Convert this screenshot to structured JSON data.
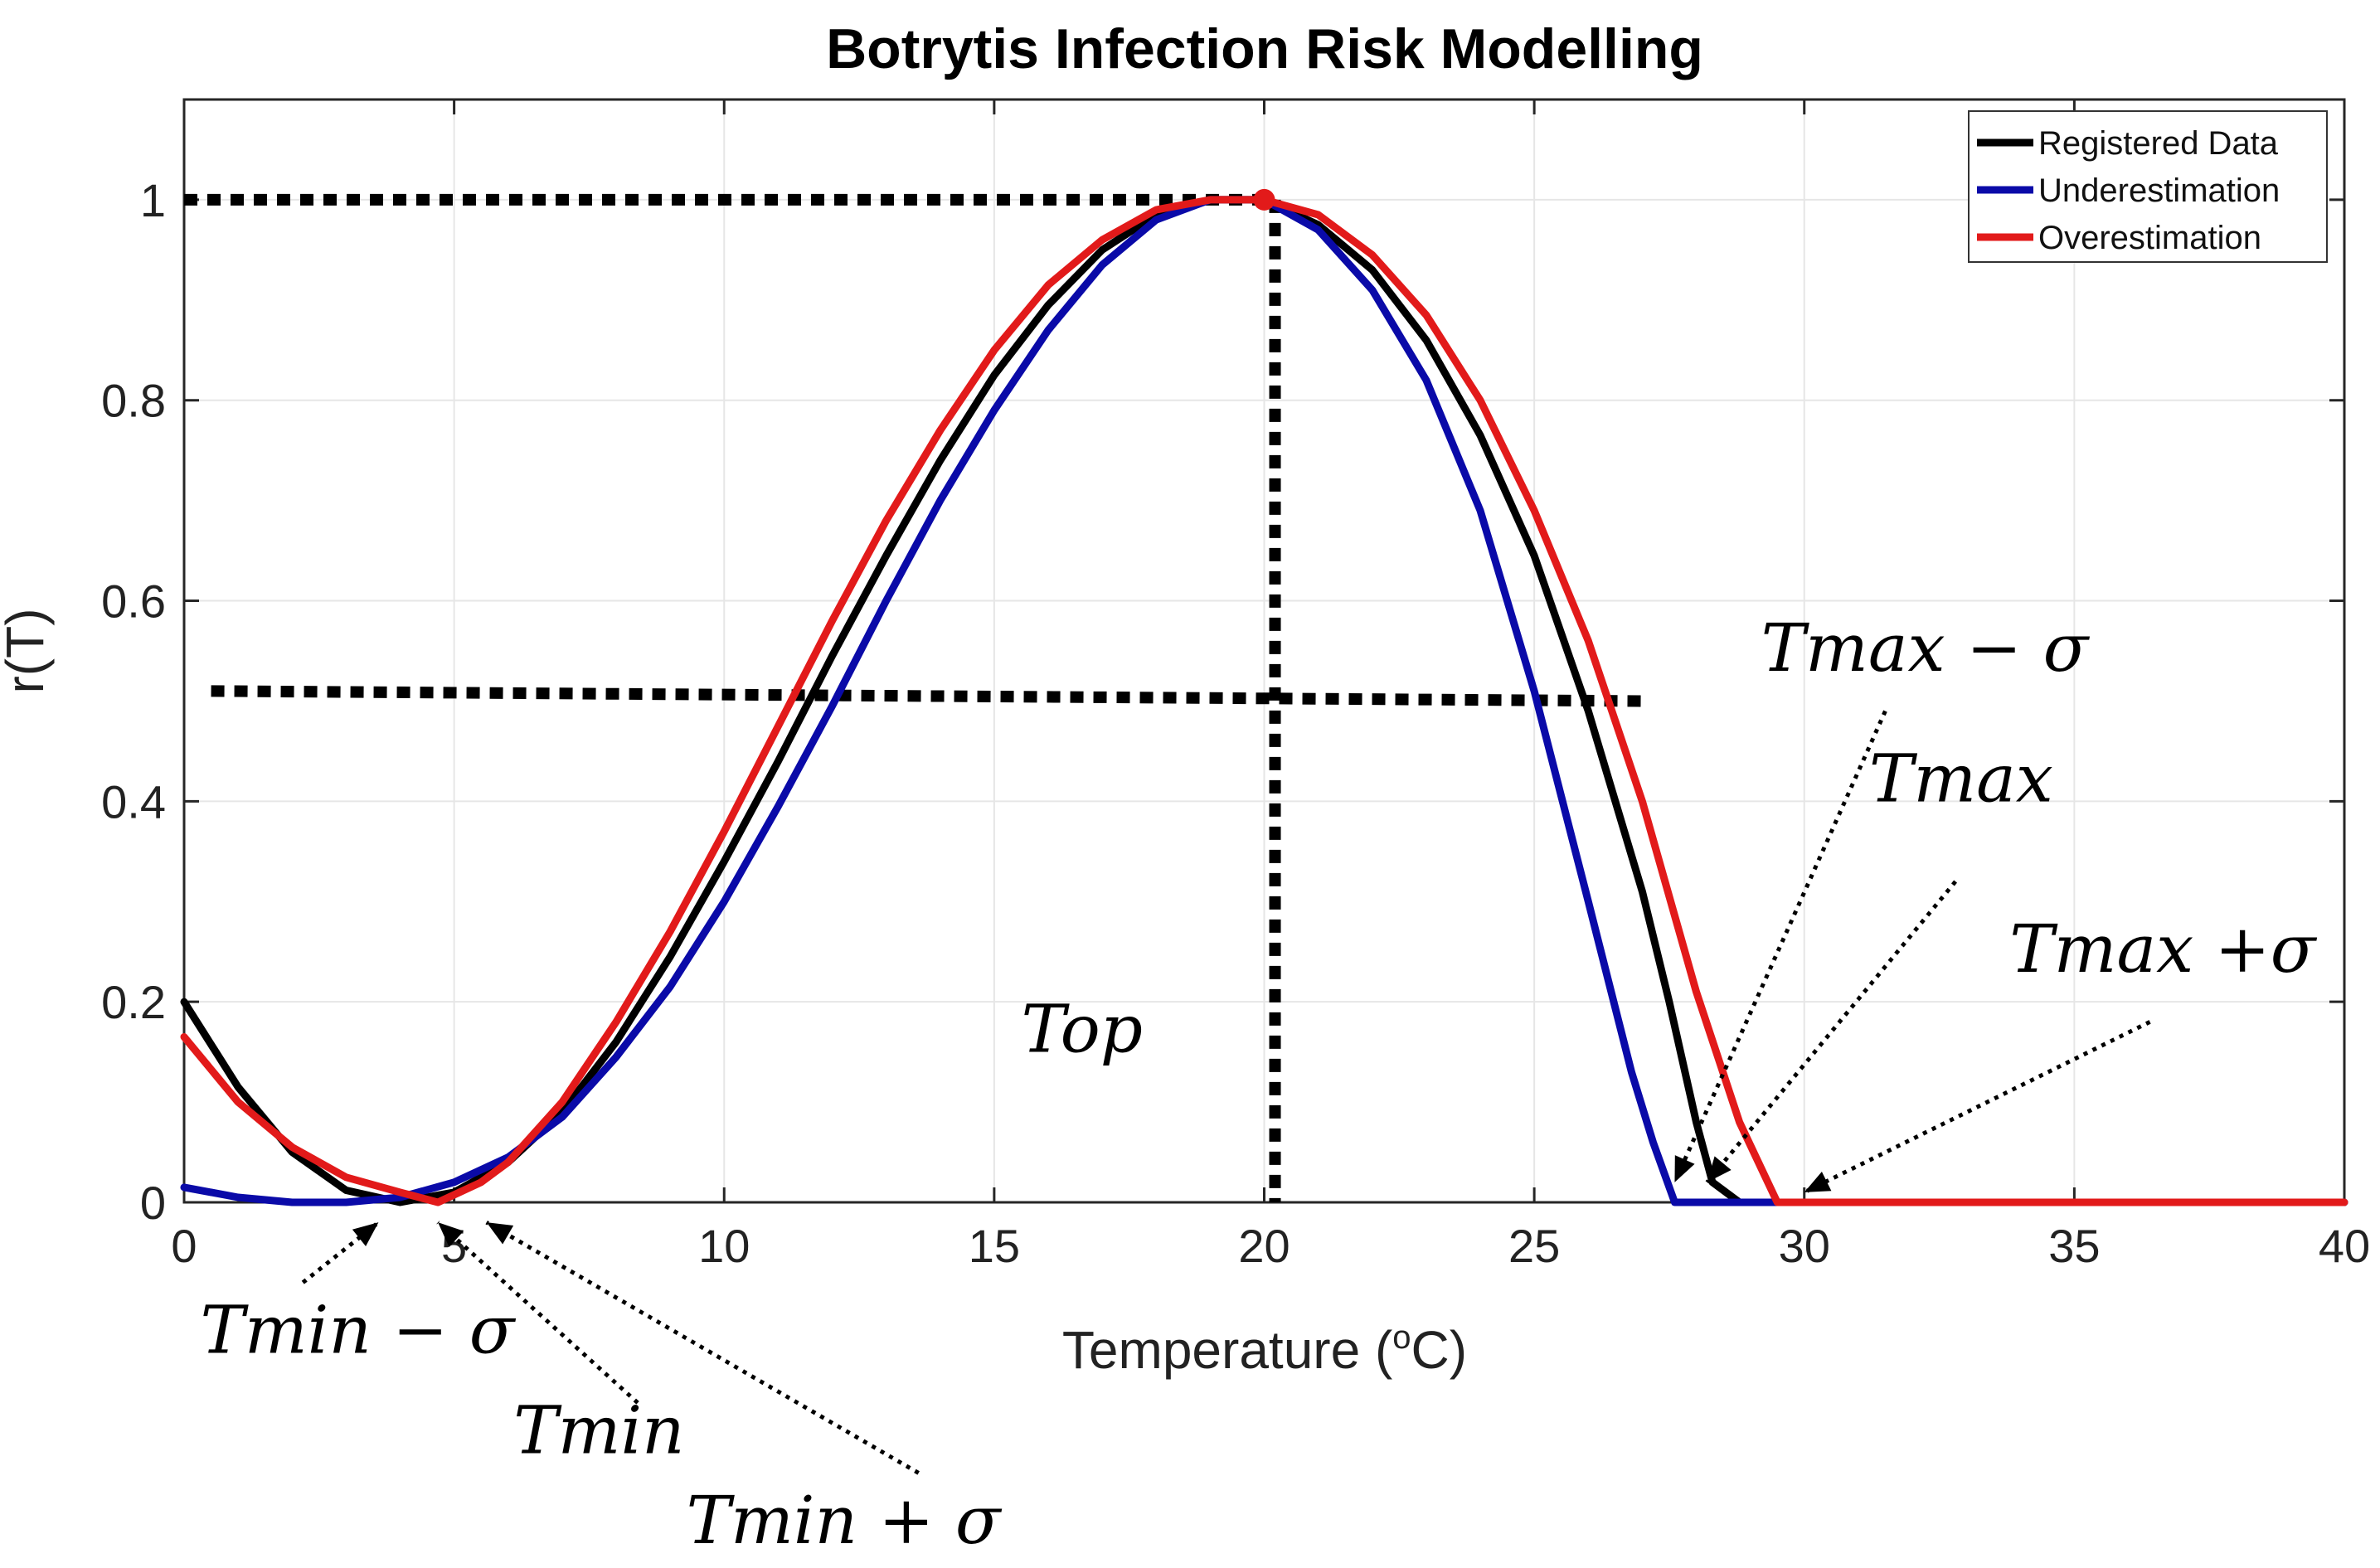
{
  "chart_data": {
    "type": "line",
    "title": "Botrytis Infection Risk Modelling",
    "xlabel": "Temperature (",
    "xlabel_sup": "o",
    "xlabel_end": "C)",
    "ylabel": "r(T)",
    "xlim": [
      0,
      40
    ],
    "ylim": [
      0,
      1.1
    ],
    "x_ticks": [
      "0",
      "5",
      "10",
      "15",
      "20",
      "25",
      "30",
      "35",
      "40"
    ],
    "y_ticks": [
      "0",
      "0.2",
      "0.4",
      "0.6",
      "0.8",
      "1"
    ],
    "grid": true,
    "legend_position": "top-right",
    "legend": [
      "Registered Data",
      "Underestimation",
      "Overestimation"
    ],
    "series": [
      {
        "name": "Registered Data",
        "color": "#000000",
        "points": [
          [
            0,
            0.2
          ],
          [
            1,
            0.115
          ],
          [
            2,
            0.05
          ],
          [
            3,
            0.012
          ],
          [
            4,
            0.0
          ],
          [
            5,
            0.01
          ],
          [
            6,
            0.04
          ],
          [
            7,
            0.09
          ],
          [
            8,
            0.16
          ],
          [
            9,
            0.245
          ],
          [
            10,
            0.34
          ],
          [
            11,
            0.44
          ],
          [
            12,
            0.545
          ],
          [
            13,
            0.645
          ],
          [
            14,
            0.74
          ],
          [
            15,
            0.825
          ],
          [
            16,
            0.895
          ],
          [
            17,
            0.95
          ],
          [
            18,
            0.985
          ],
          [
            19,
            1.0
          ],
          [
            20,
            1.0
          ],
          [
            21,
            0.975
          ],
          [
            22,
            0.93
          ],
          [
            23,
            0.86
          ],
          [
            24,
            0.765
          ],
          [
            25,
            0.645
          ],
          [
            26,
            0.49
          ],
          [
            27,
            0.31
          ],
          [
            27.5,
            0.2
          ],
          [
            28,
            0.08
          ],
          [
            28.3,
            0.02
          ],
          [
            28.8,
            0.0
          ],
          [
            40,
            0.0
          ]
        ]
      },
      {
        "name": "Underestimation",
        "color": "#0a0aa8",
        "points": [
          [
            0,
            0.015
          ],
          [
            1,
            0.005
          ],
          [
            2,
            0.0
          ],
          [
            3,
            0.0
          ],
          [
            4,
            0.005
          ],
          [
            5,
            0.02
          ],
          [
            6,
            0.045
          ],
          [
            7,
            0.085
          ],
          [
            8,
            0.145
          ],
          [
            9,
            0.215
          ],
          [
            10,
            0.3
          ],
          [
            11,
            0.395
          ],
          [
            12,
            0.495
          ],
          [
            13,
            0.6
          ],
          [
            14,
            0.7
          ],
          [
            15,
            0.79
          ],
          [
            16,
            0.87
          ],
          [
            17,
            0.935
          ],
          [
            18,
            0.98
          ],
          [
            19,
            1.0
          ],
          [
            20,
            1.0
          ],
          [
            21,
            0.97
          ],
          [
            22,
            0.91
          ],
          [
            23,
            0.82
          ],
          [
            24,
            0.69
          ],
          [
            25,
            0.51
          ],
          [
            26,
            0.3
          ],
          [
            26.8,
            0.13
          ],
          [
            27.2,
            0.06
          ],
          [
            27.6,
            0.0
          ],
          [
            40,
            0.0
          ]
        ]
      },
      {
        "name": "Overestimation",
        "color": "#e21a1a",
        "points": [
          [
            0,
            0.165
          ],
          [
            1,
            0.1
          ],
          [
            2,
            0.055
          ],
          [
            3,
            0.025
          ],
          [
            4,
            0.01
          ],
          [
            4.7,
            0.0
          ],
          [
            5.5,
            0.02
          ],
          [
            6,
            0.04
          ],
          [
            7,
            0.1
          ],
          [
            8,
            0.18
          ],
          [
            9,
            0.27
          ],
          [
            10,
            0.37
          ],
          [
            11,
            0.475
          ],
          [
            12,
            0.58
          ],
          [
            13,
            0.68
          ],
          [
            14,
            0.77
          ],
          [
            15,
            0.85
          ],
          [
            16,
            0.915
          ],
          [
            17,
            0.96
          ],
          [
            18,
            0.99
          ],
          [
            19,
            1.0
          ],
          [
            20,
            1.0
          ],
          [
            21,
            0.985
          ],
          [
            22,
            0.945
          ],
          [
            23,
            0.885
          ],
          [
            24,
            0.8
          ],
          [
            25,
            0.69
          ],
          [
            26,
            0.56
          ],
          [
            27,
            0.4
          ],
          [
            28,
            0.21
          ],
          [
            28.8,
            0.08
          ],
          [
            29.5,
            0.0
          ],
          [
            40,
            0.0
          ]
        ]
      }
    ],
    "peak_marker": {
      "x": 20,
      "y": 1.0,
      "color": "#e21a1a"
    },
    "reference_lines": [
      {
        "from": [
          0,
          1.0
        ],
        "to": [
          20,
          1.0
        ]
      },
      {
        "from": [
          20.2,
          1.0
        ],
        "to": [
          20.2,
          0.0
        ]
      },
      {
        "from": [
          0.5,
          0.51
        ],
        "to": [
          27,
          0.5
        ]
      }
    ],
    "annotations": [
      {
        "text": "Top",
        "x": 15.5,
        "y": 0.15
      },
      {
        "text": "Tmax − σ",
        "x": 29.2,
        "y": 0.53
      },
      {
        "text": "Tmax",
        "x": 31.2,
        "y": 0.4
      },
      {
        "text": "Tmax +σ",
        "x": 33.8,
        "y": 0.23
      },
      {
        "text": "Tmin − σ",
        "x": 0.3,
        "y": -0.15
      },
      {
        "text": "Tmin",
        "x": 6.1,
        "y": -0.25
      },
      {
        "text": "Tmin + σ",
        "x": 9.3,
        "y": -0.34
      }
    ],
    "arrows": [
      {
        "from": [
          31.5,
          0.49
        ],
        "to": [
          27.6,
          0.02
        ]
      },
      {
        "from": [
          32.8,
          0.32
        ],
        "to": [
          28.2,
          0.02
        ]
      },
      {
        "from": [
          36.4,
          0.18
        ],
        "to": [
          30.0,
          0.01
        ]
      },
      {
        "from": [
          2.2,
          -0.08
        ],
        "to": [
          3.6,
          -0.02
        ]
      },
      {
        "from": [
          8.4,
          -0.2
        ],
        "to": [
          4.7,
          -0.02
        ]
      },
      {
        "from": [
          13.6,
          -0.27
        ],
        "to": [
          5.6,
          -0.02
        ]
      }
    ]
  }
}
